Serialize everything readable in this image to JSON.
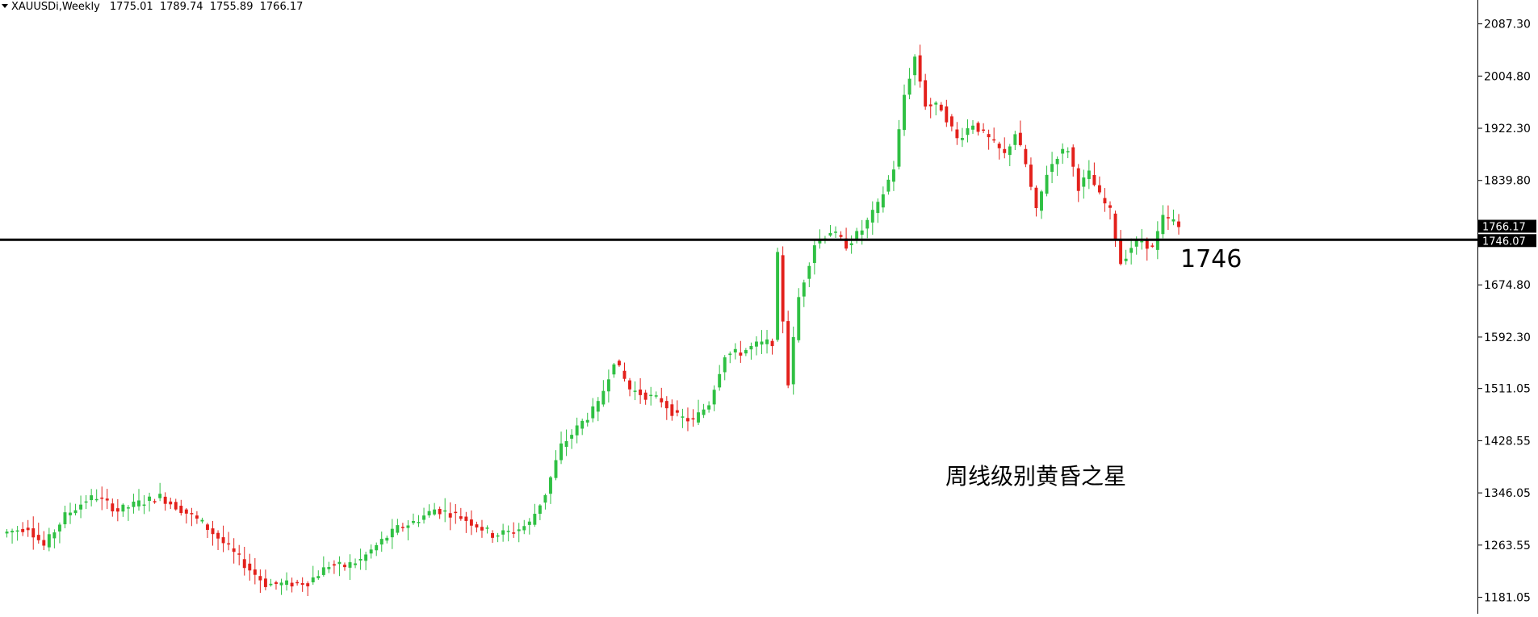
{
  "header": {
    "symbol": "XAUUSDi,Weekly",
    "open": "1775.01",
    "high": "1789.74",
    "low": "1755.89",
    "close": "1766.17"
  },
  "colors": {
    "bull": "#2fc043",
    "bear": "#e3201b",
    "line": "#000000",
    "background": "#ffffff"
  },
  "price_axis": {
    "labels": [
      "2087.30",
      "2004.80",
      "1922.30",
      "1839.80",
      "1674.80",
      "1592.30",
      "1511.05",
      "1428.55",
      "1346.05",
      "1263.55",
      "1181.05"
    ],
    "current_price_tag": "1766.17",
    "line_price_tag": "1746.07"
  },
  "annotations": {
    "level_label": "1746",
    "pattern_label": "周线级别黄昏之星"
  },
  "chart_data": {
    "type": "candlestick",
    "symbol": "XAUUSDi",
    "timeframe": "Weekly",
    "ylim": [
      1155,
      2125
    ],
    "yticks": [
      1181.05,
      1263.55,
      1346.05,
      1428.55,
      1511.05,
      1592.3,
      1674.8,
      1757.3,
      1839.8,
      1922.3,
      2004.8,
      2087.3
    ],
    "horizontal_line": 1746.07,
    "last_price": 1766.17,
    "anchors": [
      [
        0,
        1282
      ],
      [
        5,
        1292
      ],
      [
        8,
        1262
      ],
      [
        12,
        1310
      ],
      [
        16,
        1335
      ],
      [
        18,
        1340
      ],
      [
        22,
        1318
      ],
      [
        26,
        1330
      ],
      [
        30,
        1340
      ],
      [
        34,
        1320
      ],
      [
        38,
        1298
      ],
      [
        41,
        1275
      ],
      [
        44,
        1250
      ],
      [
        47,
        1225
      ],
      [
        50,
        1202
      ],
      [
        54,
        1202
      ],
      [
        58,
        1205
      ],
      [
        62,
        1232
      ],
      [
        65,
        1230
      ],
      [
        68,
        1240
      ],
      [
        72,
        1270
      ],
      [
        75,
        1290
      ],
      [
        78,
        1300
      ],
      [
        82,
        1320
      ],
      [
        86,
        1312
      ],
      [
        90,
        1295
      ],
      [
        93,
        1280
      ],
      [
        97,
        1285
      ],
      [
        100,
        1298
      ],
      [
        103,
        1345
      ],
      [
        106,
        1420
      ],
      [
        110,
        1458
      ],
      [
        113,
        1485
      ],
      [
        116,
        1556
      ],
      [
        119,
        1510
      ],
      [
        122,
        1500
      ],
      [
        125,
        1492
      ],
      [
        128,
        1466
      ],
      [
        131,
        1460
      ],
      [
        134,
        1488
      ],
      [
        137,
        1565
      ],
      [
        140,
        1568
      ],
      [
        143,
        1580
      ],
      [
        146,
        1585
      ],
      [
        147,
        1720
      ],
      [
        149,
        1520
      ],
      [
        151,
        1655
      ],
      [
        154,
        1740
      ],
      [
        157,
        1760
      ],
      [
        160,
        1738
      ],
      [
        163,
        1762
      ],
      [
        166,
        1800
      ],
      [
        169,
        1860
      ],
      [
        171,
        1975
      ],
      [
        173,
        2035
      ],
      [
        175,
        1960
      ],
      [
        178,
        1955
      ],
      [
        181,
        1905
      ],
      [
        184,
        1930
      ],
      [
        187,
        1905
      ],
      [
        190,
        1880
      ],
      [
        192,
        1915
      ],
      [
        194,
        1865
      ],
      [
        196,
        1790
      ],
      [
        198,
        1852
      ],
      [
        200,
        1880
      ],
      [
        202,
        1890
      ],
      [
        204,
        1830
      ],
      [
        206,
        1850
      ],
      [
        208,
        1815
      ],
      [
        210,
        1790
      ],
      [
        212,
        1710
      ],
      [
        214,
        1735
      ],
      [
        216,
        1745
      ],
      [
        218,
        1732
      ],
      [
        220,
        1780
      ],
      [
        222,
        1775
      ],
      [
        223,
        1766.17
      ]
    ]
  }
}
